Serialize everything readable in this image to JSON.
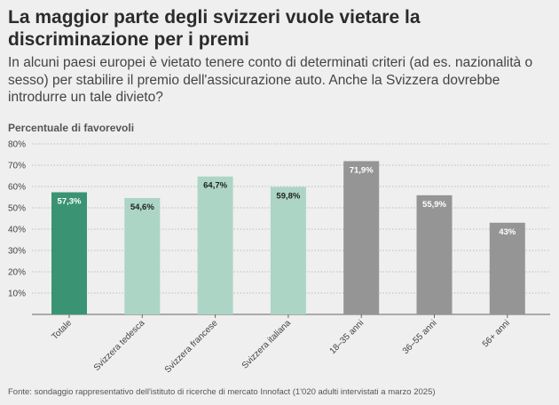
{
  "header": {
    "title": "La maggior parte degli svizzeri vuole vietare la discriminazione per i premi",
    "subtitle": "In alcuni paesi europei è vietato tenere conto di determinati criteri (ad es. nazionalità o sesso) per stabilire il premio dell'assicurazione auto. Anche la Svizzera dovrebbe introdurre un tale divieto?"
  },
  "footer": {
    "source": "Fonte: sondaggio rappresentativo dell'istituto di ricerche di mercato Innofact (1'020 adulti intervistati a marzo 2025)"
  },
  "chart_data": {
    "type": "bar",
    "ylabel": "Percentuale di favorevoli",
    "ylim": [
      0,
      80
    ],
    "yticks": [
      0,
      10,
      20,
      30,
      40,
      50,
      60,
      70,
      80
    ],
    "ytick_labels": [
      "",
      "10%",
      "20%",
      "30%",
      "40%",
      "50%",
      "60%",
      "70%",
      "80%"
    ],
    "grid": "horizontal dotted",
    "categories": [
      "Totale",
      "Svizzera tedesca",
      "Svizzera francese",
      "Svizzera italiana",
      "18–35 anni",
      "36–55 anni",
      "56+ anni"
    ],
    "values": [
      57.3,
      54.6,
      64.7,
      59.8,
      71.9,
      55.9,
      43
    ],
    "value_labels": [
      "57,3%",
      "54,6%",
      "64,7%",
      "59,8%",
      "71,9%",
      "55,9%",
      "43%"
    ],
    "colors": [
      "#3a9474",
      "#acd5c6",
      "#acd5c6",
      "#acd5c6",
      "#959595",
      "#959595",
      "#959595"
    ],
    "label_colors": [
      "#ffffff",
      "#222222",
      "#222222",
      "#222222",
      "#ffffff",
      "#ffffff",
      "#ffffff"
    ]
  }
}
